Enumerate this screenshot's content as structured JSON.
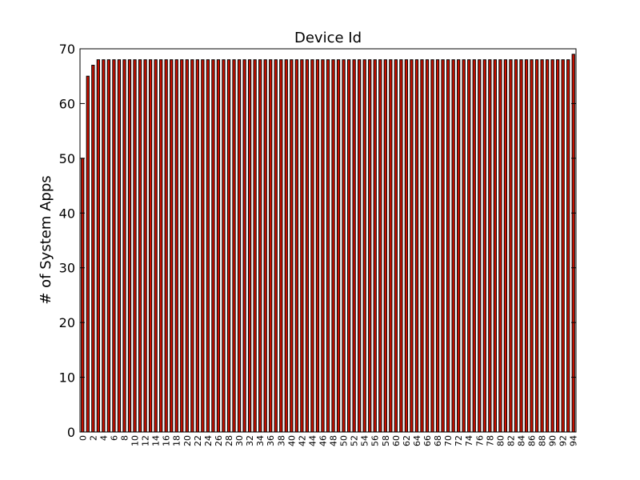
{
  "chart_data": {
    "type": "bar",
    "title": "Device Id",
    "xlabel": "",
    "ylabel": "# of System Apps",
    "ylim": [
      0,
      70
    ],
    "yticks": [
      0,
      10,
      20,
      30,
      40,
      50,
      60,
      70
    ],
    "xtick_step": 2,
    "grid": false,
    "legend": "none",
    "bar_color": "#cc1100",
    "bar_edge_color": "#000000",
    "categories": [
      0,
      1,
      2,
      3,
      4,
      5,
      6,
      7,
      8,
      9,
      10,
      11,
      12,
      13,
      14,
      15,
      16,
      17,
      18,
      19,
      20,
      21,
      22,
      23,
      24,
      25,
      26,
      27,
      28,
      29,
      30,
      31,
      32,
      33,
      34,
      35,
      36,
      37,
      38,
      39,
      40,
      41,
      42,
      43,
      44,
      45,
      46,
      47,
      48,
      49,
      50,
      51,
      52,
      53,
      54,
      55,
      56,
      57,
      58,
      59,
      60,
      61,
      62,
      63,
      64,
      65,
      66,
      67,
      68,
      69,
      70,
      71,
      72,
      73,
      74,
      75,
      76,
      77,
      78,
      79,
      80,
      81,
      82,
      83,
      84,
      85,
      86,
      87,
      88,
      89,
      90,
      91,
      92,
      93,
      94
    ],
    "values": [
      50,
      65,
      67,
      68,
      68,
      68,
      68,
      68,
      68,
      68,
      68,
      68,
      68,
      68,
      68,
      68,
      68,
      68,
      68,
      68,
      68,
      68,
      68,
      68,
      68,
      68,
      68,
      68,
      68,
      68,
      68,
      68,
      68,
      68,
      68,
      68,
      68,
      68,
      68,
      68,
      68,
      68,
      68,
      68,
      68,
      68,
      68,
      68,
      68,
      68,
      68,
      68,
      68,
      68,
      68,
      68,
      68,
      68,
      68,
      68,
      68,
      68,
      68,
      68,
      68,
      68,
      68,
      68,
      68,
      68,
      68,
      68,
      68,
      68,
      68,
      68,
      68,
      68,
      68,
      68,
      68,
      68,
      68,
      68,
      68,
      68,
      68,
      68,
      68,
      68,
      68,
      68,
      68,
      68,
      69
    ]
  }
}
